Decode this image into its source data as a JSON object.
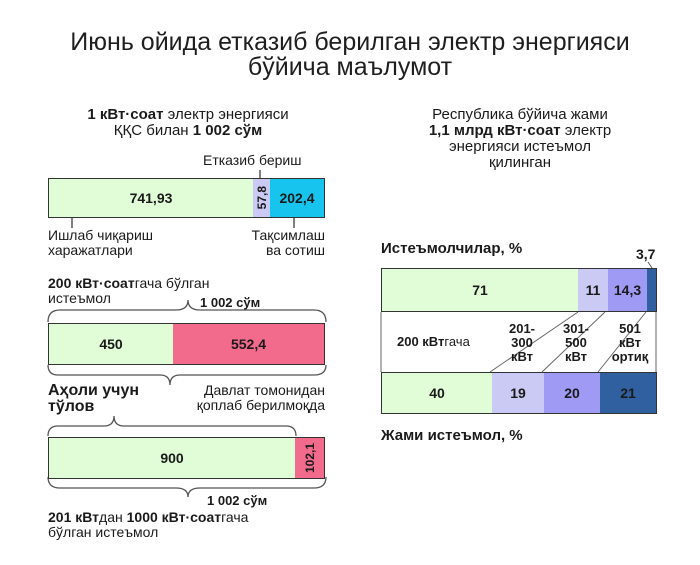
{
  "title": {
    "line1": "Июнь ойида етказиб берилган электр энергияси",
    "line2": "бўйича маълумот"
  },
  "left_block": {
    "intro_bold1": "1 кВт·соат",
    "intro_rest1": " электр энергияси",
    "intro_line2a": "ҚҚС билан ",
    "intro_line2b": "1 002 сўм",
    "label_delivery": "Етказиб бериш",
    "label_production_1": "Ишлаб чиқариш",
    "label_production_2": "харажатлари",
    "label_distribution_1": "Тақсимлаш",
    "label_distribution_2": "ва сотиш",
    "tier1_bold": "200 кВт·соат",
    "tier1_rest": "гача бўлган",
    "tier1_line2": "истеъмол",
    "tier1_total": "1 002 сўм",
    "population_1": "Аҳоли учун",
    "population_2": "тўлов",
    "subsidy_1": "Давлат томонидан",
    "subsidy_2": "қоплаб берилмоқда",
    "tier2_total": "1 002 сўм",
    "tier2_b1": "201 кВт",
    "tier2_r1": "дан ",
    "tier2_b2": "1000 кВт·соат",
    "tier2_r2": "гача",
    "tier2_line2": "бўлган истеъмол"
  },
  "right_block": {
    "intro_line1": "Республика бўйича жами",
    "intro_bold": "1,1 млрд кВт·соат",
    "intro_rest": " электр",
    "intro_line3": "энергияси истеъмол",
    "intro_line4": "қилинган",
    "consumers_label": "Истеъмолчилар, %",
    "total_label": "Жами истеъмол, %",
    "tier_a_bold": "200 кВт",
    "tier_a_rest": "гача",
    "tier_b": [
      "201-",
      "300",
      "кВт"
    ],
    "tier_c": [
      "301-",
      "500",
      "кВт"
    ],
    "tier_d": [
      "501",
      "кВт",
      "ортиқ"
    ]
  },
  "colors": {
    "green": "#e1fdd8",
    "lavender": "#cbcaf5",
    "cyan": "#16c4ee",
    "pink": "#f26a8c",
    "violet": "#9f9af3",
    "navy": "#3160a0"
  },
  "chart_data": [
    {
      "type": "bar",
      "title": "1 кВт·соат электр энергияси ҚҚС билан 1 002 сўм",
      "categories": [
        "Ишлаб чиқариш харажатлари",
        "Етказиб бериш",
        "Тақсимлаш ва сотиш"
      ],
      "values": [
        741.93,
        57.8,
        202.4
      ],
      "value_labels": [
        "741,93",
        "57,8",
        "202,4"
      ],
      "stacked": true
    },
    {
      "type": "bar",
      "title": "200 кВт·соатгача бўлган истеъмол",
      "categories": [
        "Аҳоли учун тўлов",
        "Давлат томонидан қоплаб берилмоқда"
      ],
      "values": [
        450,
        552.4
      ],
      "value_labels": [
        "450",
        "552,4"
      ],
      "total_label": "1 002 сўм",
      "stacked": true
    },
    {
      "type": "bar",
      "title": "201 кВтдан 1000 кВт·соатгача бўлган истеъмол",
      "categories": [
        "Аҳоли учун тўлов",
        "Давлат томонидан қоплаб берилмоқда"
      ],
      "values": [
        900,
        102.1
      ],
      "value_labels": [
        "900",
        "102,1"
      ],
      "total_label": "1 002 сўм",
      "stacked": true
    },
    {
      "type": "bar",
      "title": "Истеъмолчилар, %",
      "categories": [
        "200 кВтгача",
        "201-300 кВт",
        "301-500 кВт",
        "501 кВт ортиқ"
      ],
      "values": [
        71,
        11,
        14.3,
        3.7
      ],
      "value_labels": [
        "71",
        "11",
        "14,3",
        "3,7"
      ],
      "stacked": true
    },
    {
      "type": "bar",
      "title": "Жами истеъмол, %",
      "categories": [
        "200 кВтгача",
        "201-300 кВт",
        "301-500 кВт",
        "501 кВт ортиқ"
      ],
      "values": [
        40,
        19,
        20,
        21
      ],
      "value_labels": [
        "40",
        "19",
        "20",
        "21"
      ],
      "stacked": true
    }
  ]
}
